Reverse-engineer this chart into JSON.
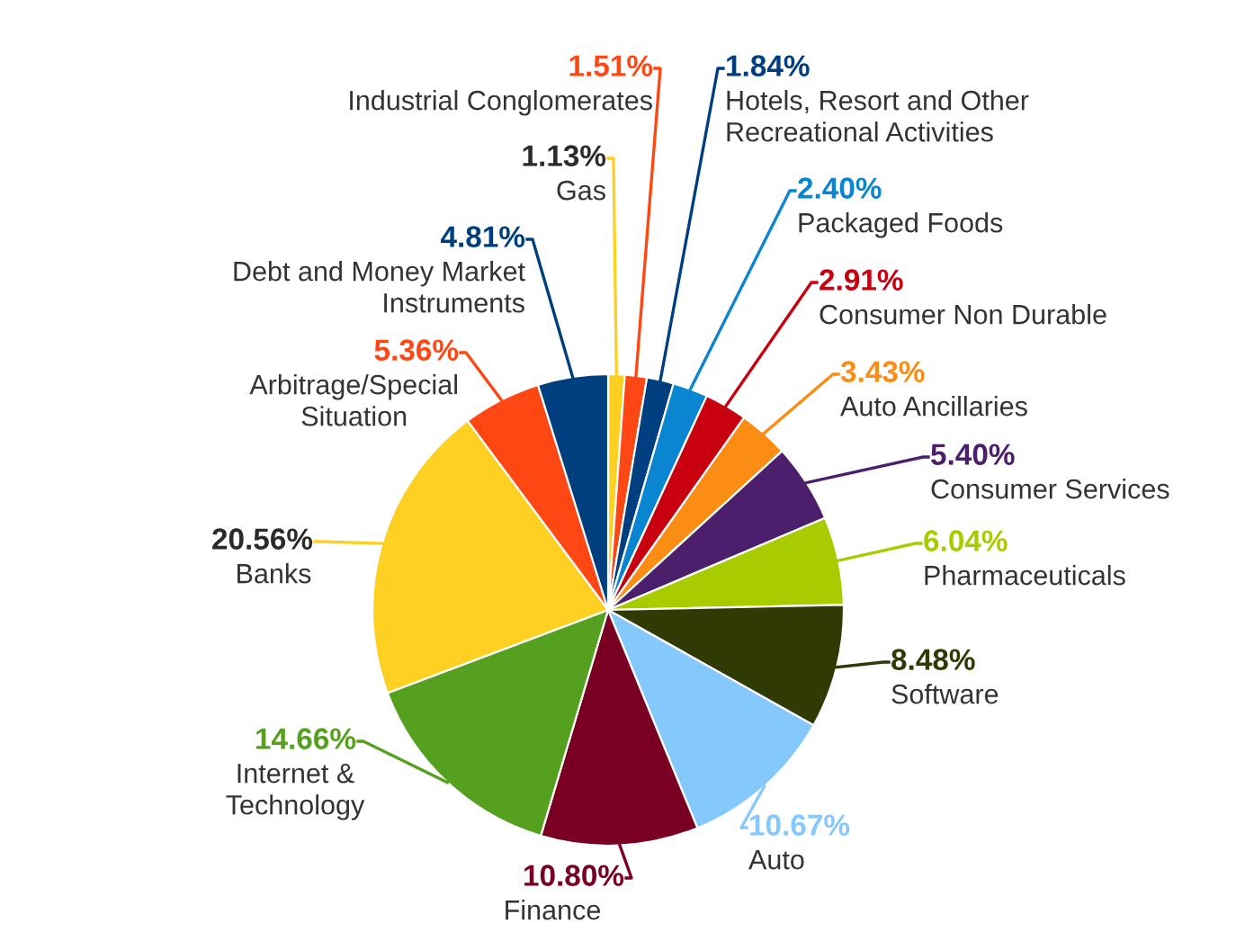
{
  "chart_data": {
    "type": "pie",
    "categories": [
      "Gas",
      "Industrial Conglomerates",
      "Hotels, Resort and Other\nRecreational Activities",
      "Packaged Foods",
      "Consumer Non Durable",
      "Auto Ancillaries",
      "Consumer Services",
      "Pharmaceuticals",
      "Software",
      "Auto",
      "Finance",
      "Internet &\nTechnology",
      "Banks",
      "Arbitrage/Special\nSituation",
      "Debt and Money Market\nInstruments"
    ],
    "values": [
      1.13,
      1.51,
      1.84,
      2.4,
      2.91,
      3.43,
      5.4,
      6.04,
      8.48,
      10.67,
      10.8,
      14.66,
      20.56,
      5.36,
      4.81
    ],
    "value_labels": [
      "1.13%",
      "1.51%",
      "1.84%",
      "2.40%",
      "2.91%",
      "3.43%",
      "5.40%",
      "6.04%",
      "8.48%",
      "10.67%",
      "10.80%",
      "14.66%",
      "20.56%",
      "5.36%",
      "4.81%"
    ],
    "colors": [
      "#fdd022",
      "#ff4713",
      "#003f7f",
      "#0a85d1",
      "#c8000f",
      "#fb8c14",
      "#4b1f6b",
      "#a8cc00",
      "#2f3a05",
      "#85c8fc",
      "#7a0023",
      "#55a01e",
      "#fdd022",
      "#ff4713",
      "#003f7f"
    ],
    "legend": false
  }
}
